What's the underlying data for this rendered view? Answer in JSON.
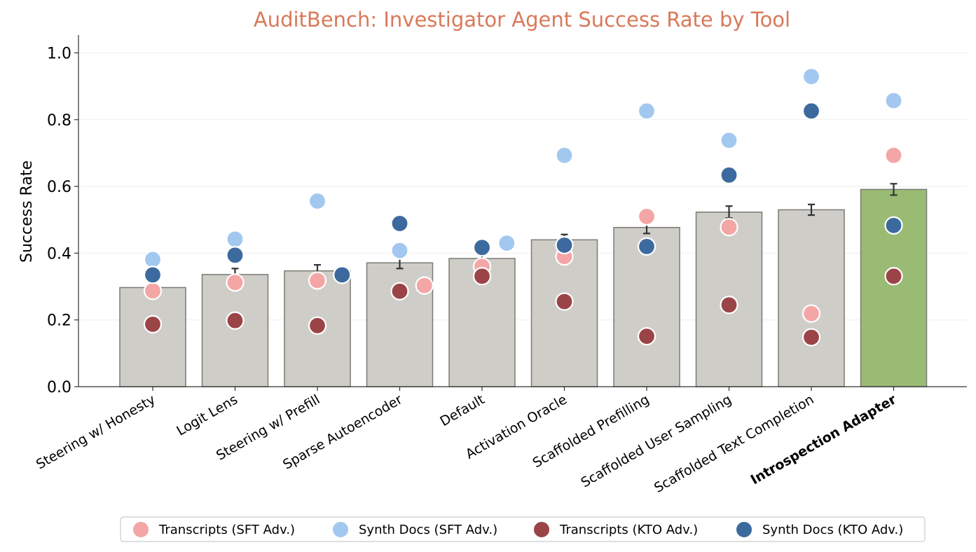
{
  "chart_data": {
    "type": "bar",
    "title": "AuditBench: Investigator Agent Success Rate by Tool",
    "xlabel": "",
    "ylabel": "Success Rate",
    "ylim": [
      0,
      1.05
    ],
    "yticks": [
      "0.0",
      "0.2",
      "0.4",
      "0.6",
      "0.8",
      "1.0"
    ],
    "grid": "horizontal",
    "legend_position": "bottom",
    "categories": [
      "Steering w/ Honesty",
      "Logit Lens",
      "Steering w/ Prefill",
      "Sparse Autoencoder",
      "Default",
      "Activation Oracle",
      "Scaffolded Prefilling",
      "Scaffolded User Sampling",
      "Scaffolded Text Completion",
      "Introspection Adapter"
    ],
    "bold_categories": [
      "Introspection Adapter"
    ],
    "bar_values": [
      0.297,
      0.336,
      0.347,
      0.371,
      0.384,
      0.44,
      0.477,
      0.523,
      0.53,
      0.591
    ],
    "bar_errors": [
      0.019,
      0.018,
      0.018,
      0.017,
      0.017,
      0.016,
      0.018,
      0.018,
      0.016,
      0.017
    ],
    "bar_colors": [
      "#cfcdc8",
      "#cfcdc8",
      "#cfcdc8",
      "#cfcdc8",
      "#cfcdc8",
      "#cfcdc8",
      "#cfcdc8",
      "#cfcdc8",
      "#cfcdc8",
      "#99bb74"
    ],
    "series": [
      {
        "name": "Transcripts (SFT Adv.)",
        "color": "#f4a6a6",
        "values": [
          0.287,
          0.312,
          0.318,
          0.303,
          0.36,
          0.39,
          0.51,
          0.478,
          0.219,
          0.693
        ],
        "offsets": [
          0,
          0,
          0,
          0.15,
          0,
          0,
          0,
          0,
          0,
          0
        ]
      },
      {
        "name": "Synth Docs (SFT Adv.)",
        "color": "#a3c8f0",
        "values": [
          0.381,
          0.442,
          0.556,
          0.408,
          0.43,
          0.693,
          0.826,
          0.738,
          0.929,
          0.857
        ],
        "offsets": [
          0,
          0,
          0,
          0,
          0.15,
          0,
          0,
          0,
          0,
          0
        ]
      },
      {
        "name": "Transcripts (KTO Adv.)",
        "color": "#9b4448",
        "values": [
          0.187,
          0.198,
          0.183,
          0.286,
          0.331,
          0.255,
          0.151,
          0.245,
          0.148,
          0.331
        ],
        "offsets": [
          0,
          0,
          0,
          0,
          0,
          0,
          0,
          0,
          0,
          0
        ]
      },
      {
        "name": "Synth Docs (KTO Adv.)",
        "color": "#3c6a9e",
        "values": [
          0.335,
          0.394,
          0.335,
          0.489,
          0.417,
          0.424,
          0.42,
          0.634,
          0.826,
          0.483
        ],
        "offsets": [
          0,
          0,
          0.15,
          0,
          0,
          0,
          0,
          0,
          0,
          0
        ]
      }
    ]
  }
}
